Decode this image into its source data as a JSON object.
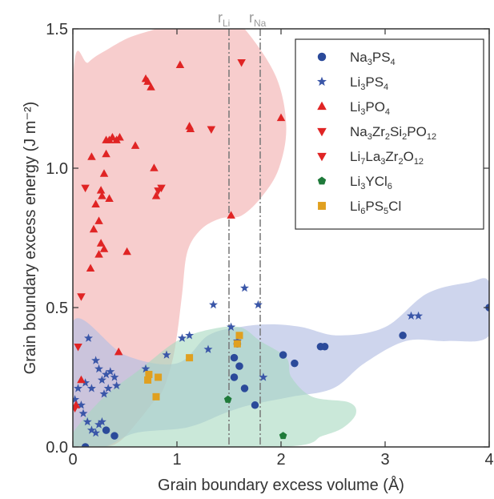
{
  "chart_data": {
    "type": "scatter",
    "xlabel": "Grain boundary excess volume (Å)",
    "ylabel": "Grain boundary excess energy (J m⁻²)",
    "xlim": [
      0,
      4
    ],
    "ylim": [
      0,
      1.5
    ],
    "x_ticks": [
      "0",
      "1",
      "2",
      "3",
      "4"
    ],
    "y_ticks": [
      "0.0",
      "0.5",
      "1.0",
      "1.5"
    ],
    "x_tick_values": [
      0,
      1,
      2,
      3,
      4
    ],
    "y_tick_values": [
      0,
      0.5,
      1.0,
      1.5
    ],
    "grid": false,
    "legend_position": "top-right",
    "reference_lines": [
      {
        "label": "rLi",
        "label_main": "r",
        "label_sub": "Li",
        "x": 1.5
      },
      {
        "label": "rNa",
        "label_main": "r",
        "label_sub": "Na",
        "x": 1.8
      }
    ],
    "series": [
      {
        "name": "Na3PS4",
        "label_parts": [
          [
            "Na",
            ""
          ],
          [
            "3",
            "sub"
          ],
          [
            "PS",
            ""
          ],
          [
            "4",
            "sub"
          ]
        ],
        "marker": "circle",
        "color": "#2b4a9a",
        "points": [
          [
            0.32,
            0.06
          ],
          [
            0.4,
            0.04
          ],
          [
            0.12,
            0.0
          ],
          [
            1.55,
            0.32
          ],
          [
            1.6,
            0.29
          ],
          [
            1.65,
            0.21
          ],
          [
            1.55,
            0.25
          ],
          [
            1.75,
            0.15
          ],
          [
            1.58,
            0.37
          ],
          [
            2.02,
            0.33
          ],
          [
            2.13,
            0.3
          ],
          [
            2.38,
            0.36
          ],
          [
            2.42,
            0.36
          ],
          [
            3.17,
            0.4
          ],
          [
            4.0,
            0.5
          ]
        ]
      },
      {
        "name": "Li3PS4",
        "label_parts": [
          [
            "Li",
            ""
          ],
          [
            "3",
            "sub"
          ],
          [
            "PS",
            ""
          ],
          [
            "4",
            "sub"
          ]
        ],
        "marker": "star",
        "color": "#3a56a8",
        "points": [
          [
            0.02,
            0.17
          ],
          [
            0.05,
            0.21
          ],
          [
            0.12,
            0.23
          ],
          [
            0.15,
            0.39
          ],
          [
            0.18,
            0.21
          ],
          [
            0.22,
            0.31
          ],
          [
            0.25,
            0.28
          ],
          [
            0.28,
            0.24
          ],
          [
            0.3,
            0.19
          ],
          [
            0.32,
            0.26
          ],
          [
            0.34,
            0.21
          ],
          [
            0.36,
            0.27
          ],
          [
            0.4,
            0.25
          ],
          [
            0.42,
            0.22
          ],
          [
            0.08,
            0.15
          ],
          [
            0.1,
            0.12
          ],
          [
            0.14,
            0.09
          ],
          [
            0.18,
            0.06
          ],
          [
            0.22,
            0.05
          ],
          [
            0.25,
            0.08
          ],
          [
            0.28,
            0.09
          ],
          [
            0.7,
            0.28
          ],
          [
            0.9,
            0.33
          ],
          [
            1.05,
            0.39
          ],
          [
            1.12,
            0.4
          ],
          [
            1.35,
            0.51
          ],
          [
            1.3,
            0.35
          ],
          [
            1.52,
            0.43
          ],
          [
            1.58,
            0.38
          ],
          [
            1.65,
            0.57
          ],
          [
            1.78,
            0.51
          ],
          [
            1.83,
            0.25
          ],
          [
            3.25,
            0.47
          ],
          [
            3.32,
            0.47
          ]
        ]
      },
      {
        "name": "Li3PO4",
        "label_parts": [
          [
            "Li",
            ""
          ],
          [
            "3",
            "sub"
          ],
          [
            "PO",
            ""
          ],
          [
            "4",
            "sub"
          ]
        ],
        "marker": "triangle-up",
        "color": "#e02424",
        "points": [
          [
            0.03,
            0.15
          ],
          [
            0.08,
            0.24
          ],
          [
            0.17,
            0.64
          ],
          [
            0.2,
            0.78
          ],
          [
            0.18,
            1.04
          ],
          [
            0.22,
            0.87
          ],
          [
            0.25,
            0.81
          ],
          [
            0.27,
            0.92
          ],
          [
            0.28,
            0.9
          ],
          [
            0.27,
            0.73
          ],
          [
            0.3,
            0.71
          ],
          [
            0.25,
            0.69
          ],
          [
            0.3,
            0.98
          ],
          [
            0.32,
            1.1
          ],
          [
            0.35,
            1.1
          ],
          [
            0.38,
            1.11
          ],
          [
            0.42,
            1.1
          ],
          [
            0.45,
            1.11
          ],
          [
            0.32,
            1.05
          ],
          [
            0.35,
            0.89
          ],
          [
            0.52,
            0.7
          ],
          [
            0.6,
            1.08
          ],
          [
            0.7,
            1.32
          ],
          [
            0.72,
            1.31
          ],
          [
            0.75,
            1.29
          ],
          [
            0.78,
            1.0
          ],
          [
            0.8,
            0.9
          ],
          [
            1.03,
            1.37
          ],
          [
            1.12,
            1.15
          ],
          [
            1.13,
            1.14
          ],
          [
            1.52,
            0.83
          ],
          [
            2.0,
            1.18
          ],
          [
            0.44,
            0.34
          ]
        ]
      },
      {
        "name": "Na3Zr2Si2PO12",
        "label_parts": [
          [
            "Na",
            ""
          ],
          [
            "3",
            "sub"
          ],
          [
            "Zr",
            ""
          ],
          [
            "2",
            "sub"
          ],
          [
            "Si",
            ""
          ],
          [
            "2",
            "sub"
          ],
          [
            "PO",
            ""
          ],
          [
            "12",
            "sub"
          ]
        ],
        "marker": "triangle-down",
        "color": "#e02424",
        "points": [
          [
            0.12,
            0.93
          ],
          [
            0.08,
            0.54
          ],
          [
            0.05,
            0.36
          ],
          [
            0.82,
            0.92
          ],
          [
            0.85,
            0.93
          ],
          [
            1.33,
            1.14
          ],
          [
            1.62,
            1.38
          ]
        ]
      },
      {
        "name": "Li7La3Zr2O12",
        "label_parts": [
          [
            "Li",
            ""
          ],
          [
            "7",
            "sub"
          ],
          [
            "La",
            ""
          ],
          [
            "3",
            "sub"
          ],
          [
            "Zr",
            ""
          ],
          [
            "2",
            "sub"
          ],
          [
            "O",
            ""
          ],
          [
            "12",
            "sub"
          ]
        ],
        "marker": "triangle-down",
        "color": "#e02424",
        "points": [
          [
            0.02,
            0.14
          ]
        ]
      },
      {
        "name": "Li3YCl6",
        "label_parts": [
          [
            "Li",
            ""
          ],
          [
            "3",
            "sub"
          ],
          [
            "YCl",
            ""
          ],
          [
            "6",
            "sub"
          ]
        ],
        "marker": "pentagon",
        "color": "#1f7a3a",
        "points": [
          [
            1.49,
            0.17
          ],
          [
            2.02,
            0.04
          ]
        ]
      },
      {
        "name": "Li6PS5Cl",
        "label_parts": [
          [
            "Li",
            ""
          ],
          [
            "6",
            "sub"
          ],
          [
            "PS",
            ""
          ],
          [
            "5",
            "sub"
          ],
          [
            "Cl",
            ""
          ]
        ],
        "marker": "square",
        "color": "#e0a020",
        "points": [
          [
            0.72,
            0.24
          ],
          [
            0.73,
            0.26
          ],
          [
            0.8,
            0.18
          ],
          [
            0.82,
            0.25
          ],
          [
            1.12,
            0.32
          ],
          [
            1.6,
            0.4
          ],
          [
            1.58,
            0.37
          ]
        ]
      }
    ],
    "regions": [
      {
        "series": "Li3PO4",
        "color": "#f4b8b8",
        "opacity": 0.7,
        "outline": [
          [
            0.0,
            1.3
          ],
          [
            0.15,
            1.38
          ],
          [
            0.35,
            1.43
          ],
          [
            0.55,
            1.47
          ],
          [
            0.8,
            1.5
          ],
          [
            1.0,
            1.53
          ],
          [
            1.2,
            1.55
          ],
          [
            1.45,
            1.55
          ],
          [
            1.65,
            1.5
          ],
          [
            1.95,
            1.33
          ],
          [
            2.05,
            1.15
          ],
          [
            1.98,
            1.0
          ],
          [
            1.82,
            0.9
          ],
          [
            1.62,
            0.83
          ],
          [
            1.42,
            0.82
          ],
          [
            1.23,
            0.78
          ],
          [
            1.1,
            0.7
          ],
          [
            1.05,
            0.55
          ],
          [
            1.0,
            0.4
          ],
          [
            0.95,
            0.3
          ],
          [
            0.86,
            0.2
          ],
          [
            0.75,
            0.15
          ],
          [
            0.6,
            0.08
          ],
          [
            0.45,
            0.02
          ],
          [
            0.3,
            0.0
          ],
          [
            0.0,
            0.0
          ]
        ]
      },
      {
        "series": "Li3PS4 / Na3PS4",
        "color": "#b4bfe3",
        "opacity": 0.65,
        "outline": [
          [
            0.0,
            0.45
          ],
          [
            0.5,
            0.33
          ],
          [
            1.0,
            0.3
          ],
          [
            1.3,
            0.4
          ],
          [
            1.6,
            0.43
          ],
          [
            1.9,
            0.44
          ],
          [
            2.2,
            0.43
          ],
          [
            2.55,
            0.4
          ],
          [
            3.0,
            0.43
          ],
          [
            3.4,
            0.55
          ],
          [
            3.8,
            0.59
          ],
          [
            4.0,
            0.59
          ],
          [
            4.0,
            0.4
          ],
          [
            3.6,
            0.38
          ],
          [
            3.2,
            0.38
          ],
          [
            2.8,
            0.3
          ],
          [
            2.5,
            0.21
          ],
          [
            2.1,
            0.18
          ],
          [
            1.7,
            0.15
          ],
          [
            1.45,
            0.12
          ],
          [
            1.1,
            0.07
          ],
          [
            0.6,
            0.05
          ],
          [
            0.3,
            0.0
          ],
          [
            0.0,
            0.0
          ]
        ]
      },
      {
        "series": "Li3YCl6 / Li6PS5Cl",
        "color": "#a6d8bf",
        "opacity": 0.6,
        "outline": [
          [
            0.0,
            0.05
          ],
          [
            0.3,
            0.18
          ],
          [
            0.65,
            0.28
          ],
          [
            1.0,
            0.38
          ],
          [
            1.3,
            0.42
          ],
          [
            1.6,
            0.43
          ],
          [
            1.8,
            0.38
          ],
          [
            2.05,
            0.32
          ],
          [
            2.1,
            0.25
          ],
          [
            2.3,
            0.18
          ],
          [
            2.65,
            0.16
          ],
          [
            2.72,
            0.12
          ],
          [
            2.6,
            0.07
          ],
          [
            2.4,
            0.04
          ],
          [
            2.0,
            0.0
          ],
          [
            0.0,
            0.0
          ]
        ]
      }
    ]
  }
}
